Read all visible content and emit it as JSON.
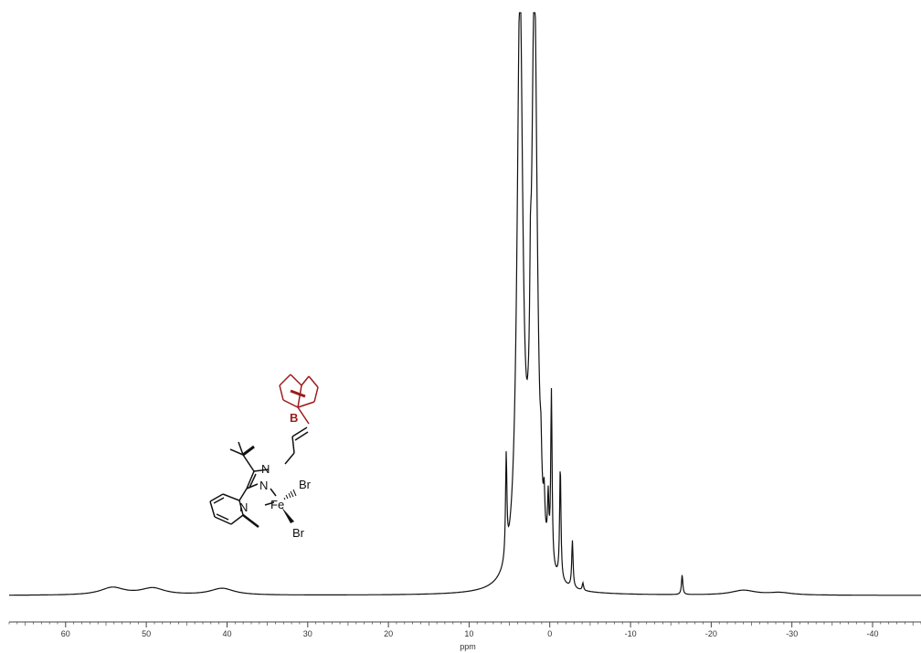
{
  "chart_data": {
    "type": "line",
    "xlabel": "ppm",
    "ylabel": "",
    "title": "",
    "xlim": [
      67,
      -46
    ],
    "x_reversed": true,
    "grid": false,
    "tick_values": [
      60,
      50,
      40,
      30,
      20,
      10,
      0,
      -10,
      -20,
      -30,
      -40
    ],
    "tick_labels": [
      "60",
      "50",
      "40",
      "30",
      "20",
      "10",
      "0",
      "-10",
      "-20",
      "-30",
      "-40"
    ],
    "peaks": [
      {
        "ppm": 54.2,
        "height": 0.019
      },
      {
        "ppm": 49.2,
        "height": 0.017
      },
      {
        "ppm": 40.6,
        "height": 0.017
      },
      {
        "ppm": 5.4,
        "height": 0.26
      },
      {
        "ppm": 3.7,
        "height": 1.5
      },
      {
        "ppm": 2.4,
        "height": 0.21
      },
      {
        "ppm": 1.9,
        "height": 1.5
      },
      {
        "ppm": 1.1,
        "height": 0.09
      },
      {
        "ppm": 0.7,
        "height": 0.09
      },
      {
        "ppm": 0.2,
        "height": 0.14
      },
      {
        "ppm": -0.2,
        "height": 0.44
      },
      {
        "ppm": -1.3,
        "height": 0.29
      },
      {
        "ppm": -2.8,
        "height": 0.12
      },
      {
        "ppm": -4.1,
        "height": 0.019
      },
      {
        "ppm": -16.4,
        "height": 0.05
      },
      {
        "ppm": -24.0,
        "height": 0.012
      },
      {
        "ppm": -28.5,
        "height": 0.006
      }
    ]
  },
  "structure": {
    "atoms": {
      "n_pyrazole_top": "N",
      "n_pyrazole_bottom": "N",
      "n_pyridine": "N",
      "fe": "Fe",
      "br_top": "Br",
      "br_bottom": "Br",
      "boron": "B"
    },
    "colors": {
      "bond": "#111111",
      "boron_group": "#9b1b1b"
    }
  },
  "colors": {
    "trace": "#111111",
    "axis": "#444444",
    "background": "#ffffff"
  }
}
